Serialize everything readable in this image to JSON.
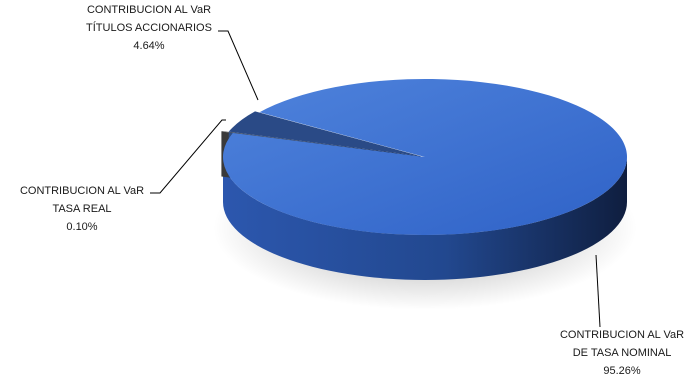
{
  "chart_data": {
    "type": "pie",
    "style": "3d-exploded",
    "slices": [
      {
        "label_line1": "CONTRIBUCION AL VaR",
        "label_line2": "DE TASA NOMINAL",
        "value": 95.26,
        "value_text": "95.26%",
        "color": "#3E6FD1"
      },
      {
        "label_line1": "CONTRIBUCION AL VaR",
        "label_line2": "TASA REAL",
        "value": 0.1,
        "value_text": "0.10%",
        "color": "#5C5C5C"
      },
      {
        "label_line1": "CONTRIBUCION AL VaR",
        "label_line2": "TÍTULOS ACCIONARIOS",
        "value": 4.64,
        "value_text": "4.64%",
        "color": "#2A4A86"
      }
    ],
    "legend": "none",
    "grid": false
  }
}
